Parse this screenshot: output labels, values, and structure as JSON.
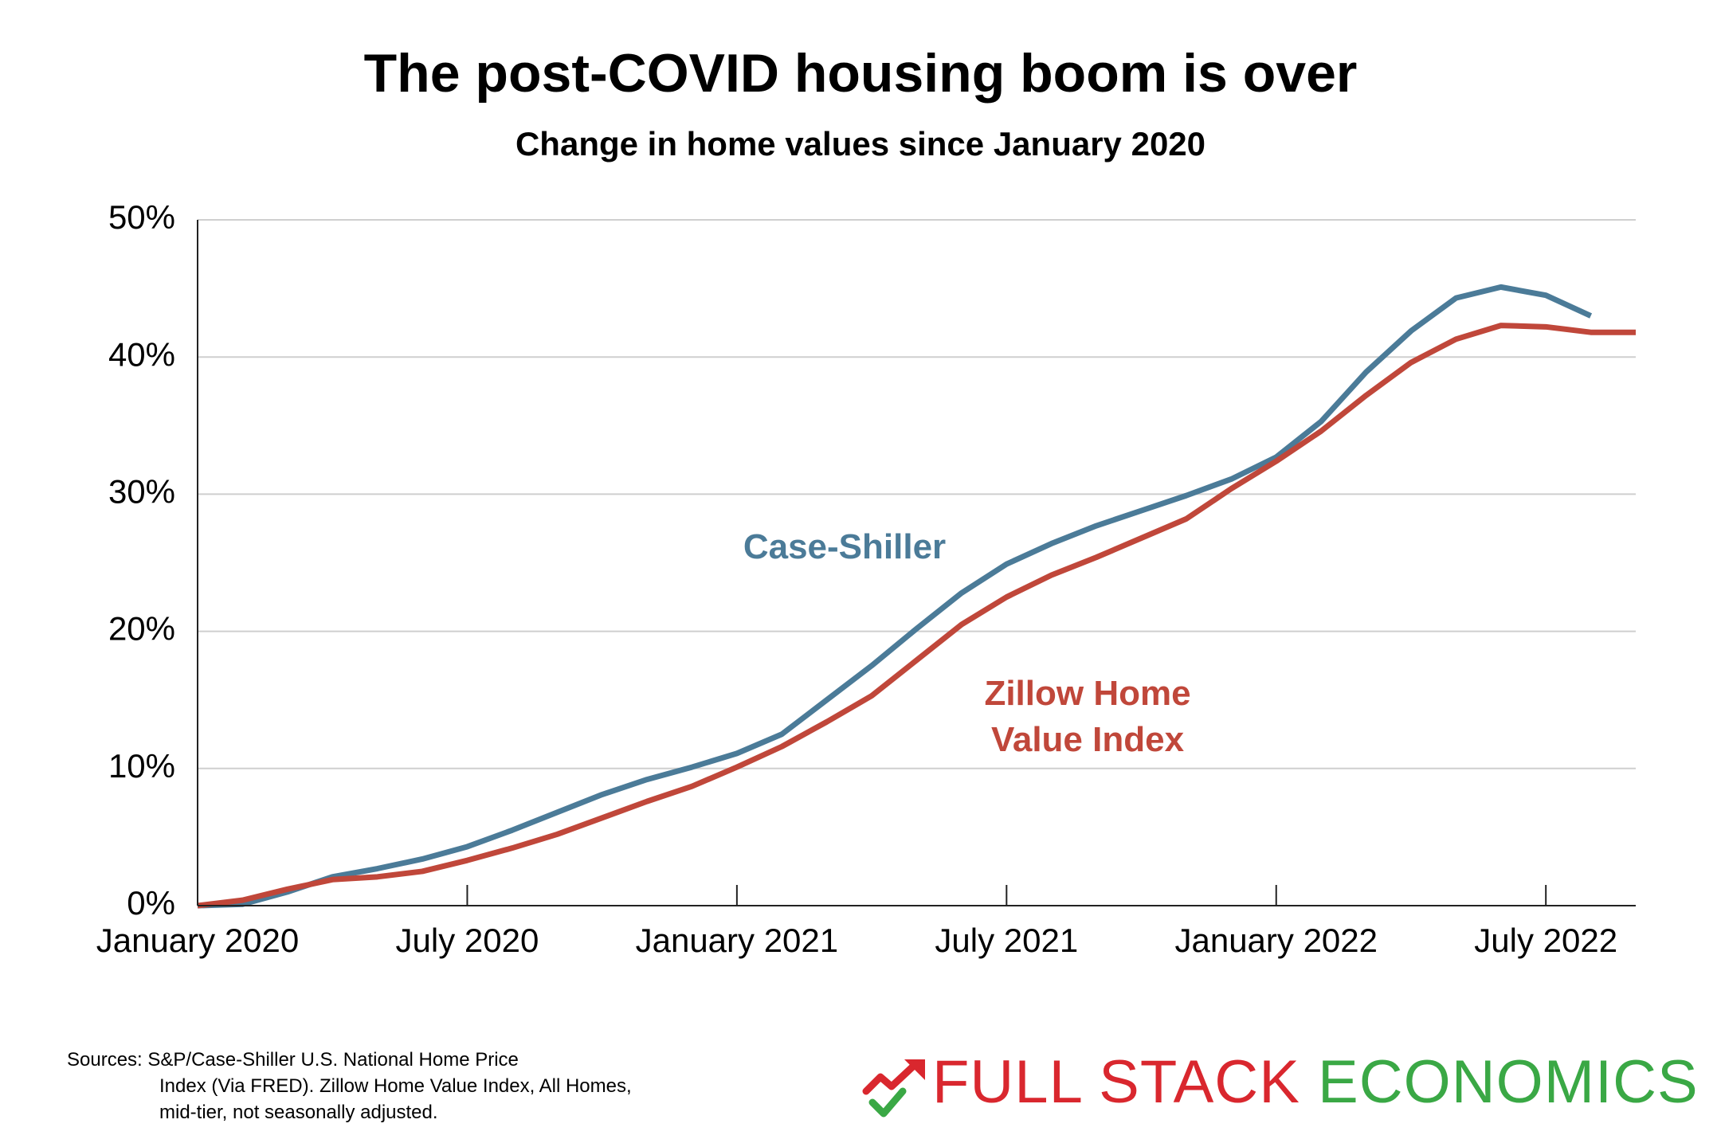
{
  "chart_data": {
    "type": "line",
    "title": "The post-COVID housing boom is over",
    "subtitle": "Change in home values since January 2020",
    "categories": [
      "January 2020",
      null,
      null,
      null,
      null,
      null,
      "July 2020",
      null,
      null,
      null,
      null,
      null,
      "January 2021",
      null,
      null,
      null,
      null,
      null,
      "July 2021",
      null,
      null,
      null,
      null,
      null,
      "January 2022",
      null,
      null,
      null,
      null,
      null,
      "July 2022",
      null,
      null
    ],
    "series": [
      {
        "name": "Case-Shiller",
        "color": "#4b7b98",
        "values": [
          0,
          0.1,
          1.0,
          2.1,
          2.7,
          3.4,
          4.3,
          5.5,
          6.8,
          8.1,
          9.2,
          10.1,
          11.1,
          12.5,
          15.0,
          17.5,
          20.2,
          22.8,
          24.9,
          26.4,
          27.7,
          28.8,
          29.9,
          31.1,
          32.7,
          35.3,
          38.9,
          41.9,
          44.3,
          45.1,
          44.5,
          43.0,
          null
        ]
      },
      {
        "name": "Zillow Home Value Index",
        "color": "#c0473a",
        "values": [
          0,
          0.4,
          1.2,
          1.9,
          2.1,
          2.5,
          3.3,
          4.2,
          5.2,
          6.4,
          7.6,
          8.7,
          10.1,
          11.6,
          13.4,
          15.3,
          17.9,
          20.5,
          22.5,
          24.1,
          25.4,
          26.8,
          28.2,
          30.4,
          32.4,
          34.6,
          37.2,
          39.6,
          41.3,
          42.3,
          42.2,
          41.8,
          41.8
        ]
      }
    ],
    "ylim": [
      0,
      50
    ],
    "yticks": [
      {
        "value": 0,
        "label": "0%"
      },
      {
        "value": 10,
        "label": "10%"
      },
      {
        "value": 20,
        "label": "20%"
      },
      {
        "value": 30,
        "label": "30%"
      },
      {
        "value": 40,
        "label": "40%"
      },
      {
        "value": 50,
        "label": "50%"
      }
    ],
    "grid": true
  },
  "sources": [
    "Sources: S&P/Case-Shiller U.S. National Home Price",
    "Index (Via FRED). Zillow Home Value Index, All Homes,",
    "mid-tier, not seasonally adjusted."
  ],
  "brand": {
    "first": "FULL STACK",
    "second": "ECONOMICS"
  }
}
